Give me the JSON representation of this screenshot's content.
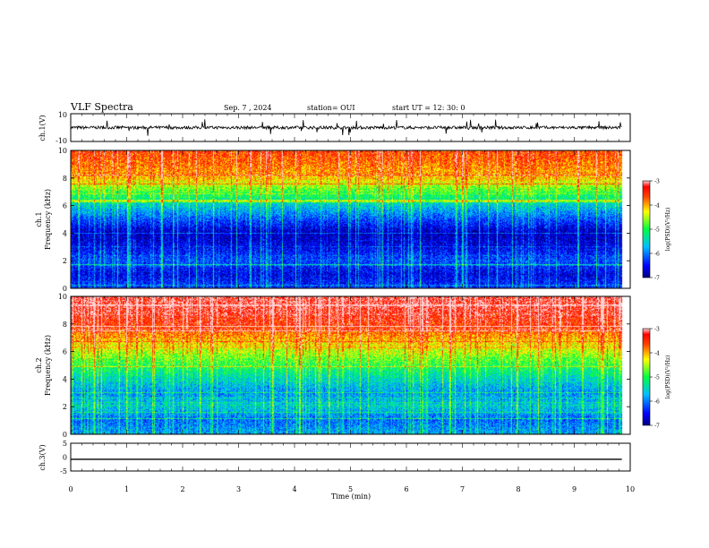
{
  "header": {
    "title": "VLF Spectra",
    "date": "Sep. 7 , 2024",
    "station": "station= OUI",
    "start": "start UT = 12: 30: 0"
  },
  "chart_data": [
    {
      "type": "line",
      "panel": "ch1-waveform",
      "ylabel": "ch.1(V)",
      "ylim": [
        -10,
        10
      ],
      "yticks": [
        "10",
        "-10"
      ],
      "xlim": [
        0,
        10
      ],
      "baseline": 0,
      "note_values": "noisy waveform around 0 V with spikes"
    },
    {
      "type": "heatmap",
      "panel": "ch1-spectrogram",
      "ylabel_line1": "ch.1",
      "ylabel_line2": "Frequency (kHz)",
      "ylim": [
        0,
        10
      ],
      "yticks": [
        "0",
        "2",
        "4",
        "6",
        "8",
        "10"
      ],
      "xlim": [
        0,
        10
      ],
      "data_end_min": 9.85,
      "colorbar": {
        "label": "log(PSD)(V²/Hz)",
        "range": [
          -7,
          -3
        ],
        "ticks": [
          "-3",
          "-4",
          "-5",
          "-6",
          "-7"
        ]
      },
      "profile": [
        [
          0,
          -6.3
        ],
        [
          1,
          -6.6
        ],
        [
          2,
          -6.2
        ],
        [
          3,
          -6.6
        ],
        [
          4,
          -6.8
        ],
        [
          5,
          -6.2
        ],
        [
          6,
          -5.6
        ],
        [
          7,
          -4.9
        ],
        [
          8,
          -4.1
        ],
        [
          9,
          -3.8
        ],
        [
          10,
          -3.6
        ]
      ]
    },
    {
      "type": "heatmap",
      "panel": "ch2-spectrogram",
      "ylabel_line1": "ch.2",
      "ylabel_line2": "Frequency (kHz)",
      "ylim": [
        0,
        10
      ],
      "yticks": [
        "0",
        "2",
        "4",
        "6",
        "8",
        "10"
      ],
      "xlim": [
        0,
        10
      ],
      "data_end_min": 9.85,
      "colorbar": {
        "label": "log(PSD)(V²/Hz)",
        "range": [
          -7,
          -3
        ],
        "ticks": [
          "-3",
          "-4",
          "-5",
          "-6",
          "-7"
        ]
      },
      "profile": [
        [
          0,
          -5.8
        ],
        [
          1,
          -6.1
        ],
        [
          2,
          -5.6
        ],
        [
          3,
          -5.9
        ],
        [
          4,
          -5.5
        ],
        [
          5,
          -5.0
        ],
        [
          6,
          -4.5
        ],
        [
          7,
          -4.0
        ],
        [
          8,
          -3.5
        ],
        [
          9,
          -3.3
        ],
        [
          10,
          -3.2
        ]
      ]
    },
    {
      "type": "line",
      "panel": "ch3-waveform",
      "ylabel": "ch.3(V)",
      "ylim": [
        -5,
        5
      ],
      "yticks": [
        "5",
        "0",
        "-5"
      ],
      "xlim": [
        0,
        10
      ],
      "xlabel": "Time (min)",
      "xticks": [
        "0",
        "1",
        "2",
        "3",
        "4",
        "5",
        "6",
        "7",
        "8",
        "9",
        "10"
      ],
      "constant_value": -0.8
    }
  ]
}
